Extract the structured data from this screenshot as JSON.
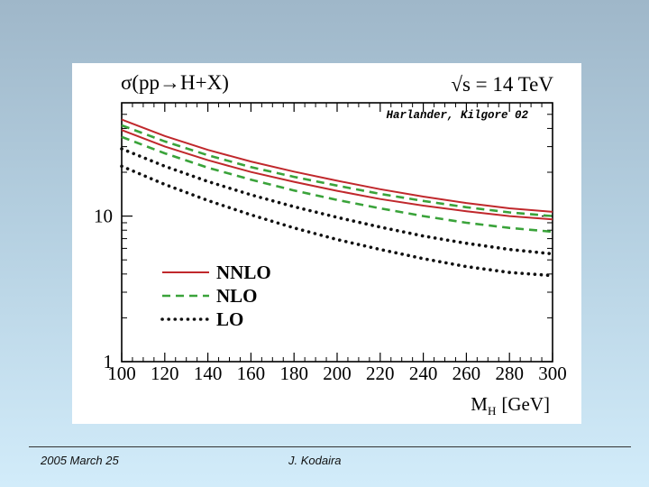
{
  "slide": {
    "footer_left": "2005 March 25",
    "footer_center": "J. Kodaira"
  },
  "colors": {
    "nnlo": "#c0282c",
    "nlo": "#3aa33a",
    "lo": "#111111",
    "axis": "#000000"
  },
  "chart_data": {
    "type": "line",
    "title": "σ(pp→H+X)",
    "energy_label": "√s = 14 TeV",
    "reference": "Harlander, Kilgore 02",
    "xlabel_main": "M",
    "xlabel_sub": "H",
    "xlabel_unit": "[GeV]",
    "ylabel": "",
    "y_scale": "log",
    "xlim": [
      100,
      300
    ],
    "ylim": [
      1,
      60
    ],
    "x_ticks": [
      "100",
      "120",
      "140",
      "160",
      "180",
      "200",
      "220",
      "240",
      "260",
      "280",
      "300"
    ],
    "y_ticks": [
      {
        "value": 1,
        "label": "1"
      },
      {
        "value": 10,
        "label": "10"
      }
    ],
    "legend_position": "lower-left",
    "legend": [
      {
        "label": "NNLO",
        "style": "solid",
        "color_key": "nnlo"
      },
      {
        "label": "NLO",
        "style": "dashed",
        "color_key": "nlo"
      },
      {
        "label": "LO",
        "style": "dotted",
        "color_key": "lo"
      }
    ],
    "x": [
      100,
      120,
      140,
      160,
      180,
      200,
      220,
      240,
      260,
      280,
      300
    ],
    "series": [
      {
        "name": "NNLO upper",
        "group": "NNLO",
        "values": [
          46,
          35.5,
          28.5,
          23.7,
          20.2,
          17.5,
          15.3,
          13.6,
          12.3,
          11.3,
          10.7
        ]
      },
      {
        "name": "NNLO lower",
        "group": "NNLO",
        "values": [
          39,
          30.1,
          24.2,
          20.1,
          17.2,
          14.9,
          13.1,
          11.8,
          10.8,
          10.0,
          9.5
        ]
      },
      {
        "name": "NLO upper",
        "group": "NLO",
        "values": [
          42,
          32.6,
          26.2,
          21.7,
          18.6,
          16.2,
          14.2,
          12.7,
          11.5,
          10.6,
          10.0
        ]
      },
      {
        "name": "NLO lower",
        "group": "NLO",
        "values": [
          35,
          27.0,
          21.5,
          17.8,
          15.0,
          12.9,
          11.3,
          10.0,
          9.0,
          8.3,
          7.8
        ]
      },
      {
        "name": "LO upper",
        "group": "LO",
        "values": [
          29,
          22.0,
          17.3,
          14.0,
          11.6,
          9.8,
          8.4,
          7.3,
          6.5,
          5.9,
          5.5
        ]
      },
      {
        "name": "LO lower",
        "group": "LO",
        "values": [
          22,
          16.5,
          12.8,
          10.2,
          8.3,
          6.9,
          5.9,
          5.1,
          4.5,
          4.1,
          3.9
        ]
      }
    ]
  }
}
